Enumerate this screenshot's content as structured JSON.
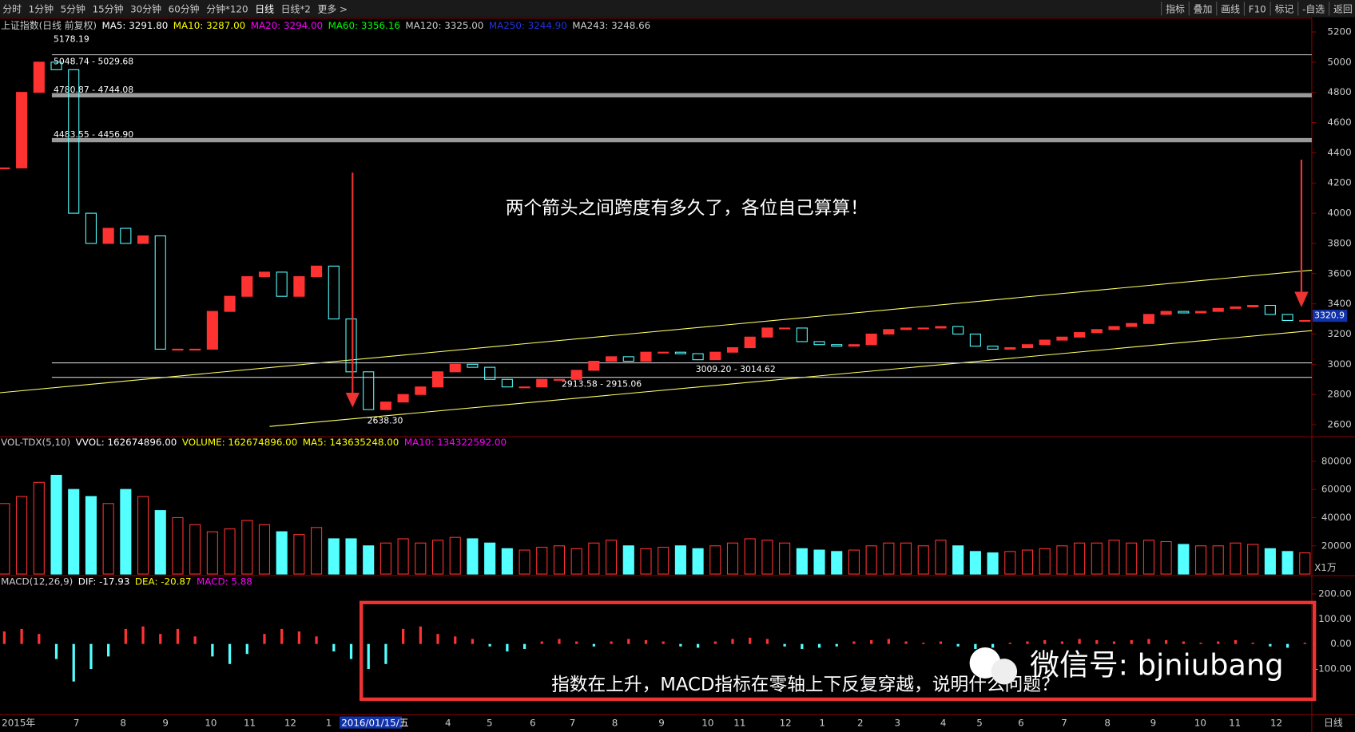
{
  "toolbar": {
    "left": [
      "分时",
      "1分钟",
      "5分钟",
      "15分钟",
      "30分钟",
      "60分钟",
      "分钟*120",
      "日线",
      "日线*2",
      "更多 >"
    ],
    "active": 7,
    "right": [
      "指标",
      "叠加",
      "画线",
      "F10",
      "标记",
      "-自选",
      "返回"
    ]
  },
  "price_panel": {
    "header": [
      {
        "text": "上证指数(日线 前复权)",
        "color": "#cccccc"
      },
      {
        "text": "MA5: 3291.80",
        "color": "#ffffff"
      },
      {
        "text": "MA10: 3287.00",
        "color": "#ffff00"
      },
      {
        "text": "MA20: 3294.00",
        "color": "#ff00ff"
      },
      {
        "text": "MA60: 3356.16",
        "color": "#00ff00"
      },
      {
        "text": "MA120: 3325.00",
        "color": "#cccccc"
      },
      {
        "text": "MA250: 3244.90",
        "color": "#2233dd"
      },
      {
        "text": "MA243: 3248.66",
        "color": "#cccccc"
      }
    ],
    "ylim": [
      2600,
      5200
    ],
    "yticks": [
      2600,
      2800,
      3000,
      3200,
      3400,
      3600,
      3800,
      4000,
      4200,
      4400,
      4600,
      4800,
      5000,
      5200
    ],
    "closes": [
      4300,
      4800,
      5000,
      4950,
      4000,
      3800,
      3900,
      3800,
      3850,
      3100,
      3100,
      3100,
      3350,
      3450,
      3580,
      3610,
      3450,
      3580,
      3650,
      3300,
      2950,
      2700,
      2750,
      2800,
      2850,
      2950,
      3000,
      2980,
      2900,
      2850,
      2850,
      2900,
      2900,
      2960,
      3020,
      3050,
      3020,
      3080,
      3080,
      3070,
      3030,
      3080,
      3110,
      3180,
      3240,
      3240,
      3150,
      3130,
      3120,
      3130,
      3200,
      3230,
      3240,
      3240,
      3250,
      3200,
      3120,
      3100,
      3110,
      3130,
      3160,
      3180,
      3210,
      3230,
      3250,
      3270,
      3330,
      3350,
      3340,
      3350,
      3370,
      3380,
      3390,
      3330,
      3290,
      3290
    ],
    "up_color": "#ff3232",
    "down_color": "#54ffff",
    "levels": [
      {
        "label": "5048.74 - 5029.68",
        "value": 5048.74
      },
      {
        "label": "4780.87 - 4744.08",
        "value": 4780.87
      },
      {
        "label": "4483.55 - 4456.90",
        "value": 4483.55
      },
      {
        "label": "3009.20 - 3014.62",
        "value": 3009.2
      },
      {
        "label": "2913.58 - 2915.06",
        "value": 2913.58
      }
    ],
    "high_label": "5178.19",
    "low_label": "2638.30",
    "last_price": {
      "label": "3320.9",
      "value": 3320.9
    }
  },
  "volume_panel": {
    "header": [
      {
        "text": "VOL-TDX(5,10)",
        "color": "#cccccc"
      },
      {
        "text": "VVOL: 162674896.00",
        "color": "#ffffff"
      },
      {
        "text": "VOLUME: 162674896.00",
        "color": "#ffff00"
      },
      {
        "text": "MA5: 143635248.00",
        "color": "#ffff00"
      },
      {
        "text": "MA10: 134322592.00",
        "color": "#ff00ff"
      }
    ],
    "unit": "X1万",
    "ylim": [
      0,
      90000
    ],
    "yticks": [
      20000,
      40000,
      60000,
      80000
    ],
    "values": [
      50000,
      55000,
      65000,
      70000,
      60000,
      55000,
      50000,
      60000,
      55000,
      45000,
      40000,
      35000,
      30000,
      32000,
      38000,
      35000,
      30000,
      28000,
      33000,
      25000,
      25000,
      20000,
      22000,
      25000,
      22000,
      24000,
      26000,
      25000,
      22000,
      18000,
      17000,
      19000,
      20000,
      18000,
      22000,
      24000,
      20000,
      18000,
      19000,
      20000,
      18000,
      20000,
      22000,
      25000,
      24000,
      22000,
      18000,
      17000,
      16000,
      17000,
      20000,
      22000,
      22000,
      20000,
      24000,
      20000,
      16000,
      15000,
      16000,
      17000,
      18000,
      20000,
      22000,
      22000,
      24000,
      22000,
      24000,
      23000,
      21000,
      20000,
      20000,
      22000,
      21000,
      18000,
      16000,
      15000
    ]
  },
  "macd_panel": {
    "header": [
      {
        "text": "MACD(12,26,9)",
        "color": "#cccccc"
      },
      {
        "text": "DIF: -17.93",
        "color": "#ffffff"
      },
      {
        "text": "DEA: -20.87",
        "color": "#ffff00"
      },
      {
        "text": "MACD: 5.88",
        "color": "#ff00ff"
      }
    ],
    "ylim": [
      -250,
      250
    ],
    "yticks": [
      {
        "value": 200,
        "label": "200.00"
      },
      {
        "value": 100,
        "label": "100.00"
      },
      {
        "value": 0,
        "label": "0.00"
      },
      {
        "value": -100,
        "label": "-100.00"
      }
    ],
    "values": [
      50,
      60,
      40,
      -60,
      -150,
      -100,
      -50,
      60,
      70,
      40,
      60,
      30,
      -50,
      -80,
      -40,
      40,
      60,
      50,
      30,
      -30,
      -60,
      -100,
      -80,
      60,
      70,
      40,
      30,
      20,
      -10,
      -30,
      -20,
      10,
      20,
      10,
      -10,
      10,
      20,
      15,
      10,
      -10,
      -15,
      10,
      20,
      25,
      20,
      -10,
      -20,
      -15,
      -10,
      10,
      15,
      20,
      10,
      5,
      10,
      -10,
      -20,
      -15,
      5,
      10,
      15,
      10,
      20,
      15,
      10,
      15,
      20,
      15,
      10,
      5,
      10,
      15,
      5,
      -10,
      -15,
      5
    ]
  },
  "x_axis": {
    "labels": [
      "2015年",
      "7",
      "8",
      "9",
      "10",
      "11",
      "12",
      "1",
      "2016/01/15/五",
      "4",
      "5",
      "6",
      "7",
      "8",
      "9",
      "10",
      "11",
      "12",
      "1",
      "2",
      "3",
      "4",
      "5",
      "6",
      "7",
      "8",
      "9",
      "10",
      "11",
      "12"
    ],
    "period": "日线"
  },
  "annotations": {
    "top": "两个箭头之间跨度有多久了，各位自己算算！",
    "bottom": "指数在上升，MACD指标在零轴上下反复穿越，说明什么问题？",
    "wechat": "微信号: bjniubang"
  }
}
